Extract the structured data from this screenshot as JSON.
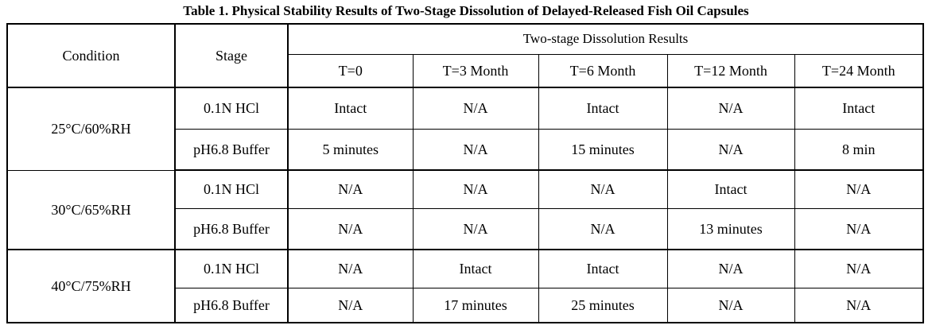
{
  "caption": "Table 1. Physical Stability Results of Two-Stage Dissolution of Delayed-Released Fish Oil Capsules",
  "headers": {
    "condition": "Condition",
    "stage": "Stage",
    "group": "Two-stage Dissolution Results",
    "timepoints": [
      "T=0",
      "T=3 Month",
      "T=6 Month",
      "T=12 Month",
      "T=24 Month"
    ]
  },
  "groups": [
    {
      "condition": "25°C/60%RH",
      "rows": [
        {
          "stage": "0.1N HCl",
          "values": [
            "Intact",
            "N/A",
            "Intact",
            "N/A",
            "Intact"
          ]
        },
        {
          "stage": "pH6.8 Buffer",
          "values": [
            "5 minutes",
            "N/A",
            "15 minutes",
            "N/A",
            "8 min"
          ]
        }
      ]
    },
    {
      "condition": "30°C/65%RH",
      "rows": [
        {
          "stage": "0.1N HCl",
          "values": [
            "N/A",
            "N/A",
            "N/A",
            "Intact",
            "N/A"
          ]
        },
        {
          "stage": "pH6.8 Buffer",
          "values": [
            "N/A",
            "N/A",
            "N/A",
            "13 minutes",
            "N/A"
          ]
        }
      ]
    },
    {
      "condition": "40°C/75%RH",
      "rows": [
        {
          "stage": "0.1N HCl",
          "values": [
            "N/A",
            "Intact",
            "Intact",
            "N/A",
            "N/A"
          ]
        },
        {
          "stage": "pH6.8 Buffer",
          "values": [
            "N/A",
            "17 minutes",
            "25 minutes",
            "N/A",
            "N/A"
          ]
        }
      ]
    }
  ]
}
